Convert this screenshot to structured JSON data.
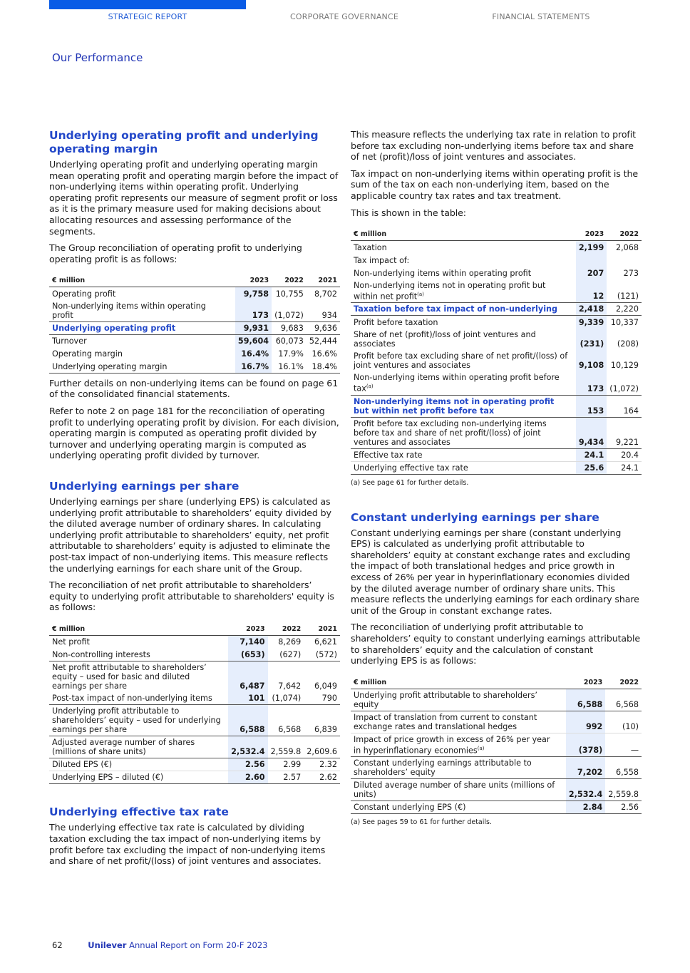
{
  "nav": {
    "tabs": [
      "STRATEGIC REPORT",
      "CORPORATE GOVERNANCE",
      "FINANCIAL STATEMENTS"
    ],
    "active": 0,
    "accent": "#0a5ce6"
  },
  "section": "Our Performance",
  "left": {
    "uop": {
      "title": "Underlying operating profit and underlying operating margin",
      "p1": "Underlying operating profit and underlying operating margin mean operating profit and operating margin before the impact of non-underlying items within operating profit. Underlying operating profit represents our measure of segment profit or loss as it is the primary measure used for making decisions about allocating resources and assessing performance of the segments.",
      "p2": "The Group reconciliation of operating profit to underlying operating profit is as follows:",
      "table": {
        "headers": [
          "€ million",
          "2023",
          "2022",
          "2021"
        ],
        "rows": [
          {
            "cells": [
              "Operating profit",
              "9,758",
              "10,755",
              "8,702"
            ]
          },
          {
            "cells": [
              "Non-underlying items within operating profit",
              "173",
              "(1,072)",
              "934"
            ],
            "sep": true
          },
          {
            "cells": [
              "Underlying operating profit",
              "9,931",
              "9,683",
              "9,636"
            ],
            "blue": true,
            "sep": true
          },
          {
            "cells": [
              "Turnover",
              "59,604",
              "60,073",
              "52,444"
            ]
          },
          {
            "cells": [
              "Operating margin",
              "16.4%",
              "17.9%",
              "16.6%"
            ]
          },
          {
            "cells": [
              "Underlying operating margin",
              "16.7%",
              "16.1%",
              "18.4%"
            ],
            "sep": true
          }
        ]
      },
      "p3": "Further details on non-underlying items can be found on page 61 of the consolidated financial statements.",
      "p4": "Refer to note 2 on page 181 for the reconciliation of operating profit to underlying operating profit by division. For each division, operating margin is computed as operating profit divided by turnover and underlying operating margin is computed as underlying operating profit divided by turnover."
    },
    "eps": {
      "title": "Underlying earnings per share",
      "p1": "Underlying earnings per share (underlying EPS) is calculated as underlying profit attributable to shareholders’ equity divided by the diluted average number of ordinary shares. In calculating underlying profit attributable to shareholders’ equity, net profit attributable to shareholders’ equity is adjusted to eliminate the post-tax impact of non-underlying items. This measure reflects the underlying earnings for each share unit of the Group.",
      "p2": "The reconciliation of net profit attributable to shareholders’ equity to underlying profit attributable to shareholders' equity is as follows:",
      "table": {
        "headers": [
          "€ million",
          "2023",
          "2022",
          "2021"
        ],
        "rows": [
          {
            "cells": [
              "Net profit",
              "7,140",
              "8,269",
              "6,621"
            ]
          },
          {
            "cells": [
              "Non-controlling interests",
              "(653)",
              "(627)",
              "(572)"
            ],
            "sep": true
          },
          {
            "cells": [
              "Net profit attributable to shareholders’ equity – used for basic and diluted earnings per share",
              "6,487",
              "7,642",
              "6,049"
            ]
          },
          {
            "cells": [
              "Post-tax impact of non-underlying items",
              "101",
              "(1,074)",
              "790"
            ],
            "sep": true
          },
          {
            "cells": [
              "Underlying profit attributable to shareholders’ equity – used for underlying earnings per share",
              "6,588",
              "6,568",
              "6,839"
            ],
            "sep": true
          },
          {
            "cells": [
              "Adjusted average number of shares (millions of share units)",
              "2,532.4",
              "2,559.8",
              "2,609.6"
            ],
            "sep": true
          },
          {
            "cells": [
              "Diluted EPS (€)",
              "2.56",
              "2.99",
              "2.32"
            ],
            "thin": true
          },
          {
            "cells": [
              "Underlying EPS – diluted (€)",
              "2.60",
              "2.57",
              "2.62"
            ],
            "sep": true
          }
        ]
      }
    },
    "etr": {
      "title": "Underlying effective tax rate",
      "p1": "The underlying effective tax rate is calculated by dividing taxation excluding the tax impact of non-underlying items by profit before tax excluding the impact of non-underlying items and share of net profit/(loss) of joint ventures and associates."
    }
  },
  "right": {
    "etr": {
      "p1": "This measure reflects the underlying tax rate in relation to profit before tax excluding non-underlying items before tax and share of net (profit)/loss of joint ventures and associates.",
      "p2": "Tax impact on non-underlying items within operating profit is the sum of the tax on each non-underlying item, based on the applicable country tax rates and tax treatment.",
      "p3": "This is shown in the table:",
      "table": {
        "headers": [
          "€ million",
          "2023",
          "2022"
        ],
        "rows": [
          {
            "cells": [
              "Taxation",
              "2,199",
              "2,068"
            ]
          },
          {
            "cells": [
              "Tax impact of:",
              "",
              ""
            ]
          },
          {
            "cells": [
              "Non-underlying items within operating profit",
              "207",
              "273"
            ]
          },
          {
            "cells": [
              "Non-underlying items not in operating profit but within net profit",
              "12",
              "(121)"
            ],
            "sup": "(a)",
            "sep": true
          },
          {
            "cells": [
              "Taxation before tax impact of non-underlying",
              "2,418",
              "2,220"
            ],
            "blue": true,
            "sep": true
          },
          {
            "cells": [
              "Profit before taxation",
              "9,339",
              "10,337"
            ]
          },
          {
            "cells": [
              "Share of net (profit)/loss of joint ventures and associates",
              "(231)",
              "(208)"
            ]
          },
          {
            "cells": [
              "Profit before tax excluding share of net profit/(loss) of joint ventures and associates",
              "9,108",
              "10,129"
            ]
          },
          {
            "cells": [
              "Non-underlying items within operating profit before tax",
              "173",
              "(1,072)"
            ],
            "sup": "(a)",
            "sep": true
          },
          {
            "cells": [
              "Non-underlying items not in operating profit but within net profit before tax",
              "153",
              "164"
            ],
            "blue": true,
            "sep": true
          },
          {
            "cells": [
              "Profit before tax excluding non-underlying items before tax and share of net profit/(loss) of joint ventures and associates",
              "9,434",
              "9,221"
            ],
            "sep": true
          },
          {
            "cells": [
              "Effective tax rate",
              "24.1",
              "20.4"
            ],
            "thin": true
          },
          {
            "cells": [
              "Underlying effective tax rate",
              "25.6",
              "24.1"
            ],
            "sep": true
          }
        ]
      },
      "note": "(a)     See page 61 for further details."
    },
    "ceps": {
      "title": "Constant underlying earnings per share",
      "p1": "Constant underlying earnings per share (constant underlying EPS) is calculated as underlying profit attributable to shareholders’ equity at constant exchange rates and excluding the impact of both translational hedges and price growth in excess of 26% per year in hyperinflationary economies divided by the diluted average number of ordinary share units. This measure reflects the underlying earnings for each ordinary share unit of the Group in constant exchange rates.",
      "p2": "The reconciliation of underlying profit attributable to shareholders’ equity to constant underlying earnings attributable to shareholders’ equity and the calculation of constant underlying EPS is as follows:",
      "table": {
        "headers": [
          "€ million",
          "2023",
          "2022"
        ],
        "rows": [
          {
            "cells": [
              "Underlying profit attributable to shareholders’ equity",
              "6,588",
              "6,568"
            ],
            "sep": true
          },
          {
            "cells": [
              "Impact of translation from current to constant exchange rates and translational hedges",
              "992",
              "(10)"
            ],
            "thin": true
          },
          {
            "cells": [
              "Impact of price growth in excess of 26% per year in hyperinflationary economies",
              "(378)",
              "—"
            ],
            "sup": "(a)",
            "sep": true
          },
          {
            "cells": [
              "Constant underlying earnings attributable to shareholders’ equity",
              "7,202",
              "6,558"
            ],
            "sep": true
          },
          {
            "cells": [
              "Diluted average number of share units (millions of units)",
              "2,532.4",
              "2,559.8"
            ],
            "sep": true
          },
          {
            "cells": [
              "Constant underlying EPS (€)",
              "2.84",
              "2.56"
            ],
            "sep": true
          }
        ]
      },
      "note": "(a)     See pages 59 to 61 for further details."
    }
  },
  "footer": {
    "page": "62",
    "brand": "Unilever",
    "title": "Annual Report on Form 20-F 2023"
  }
}
